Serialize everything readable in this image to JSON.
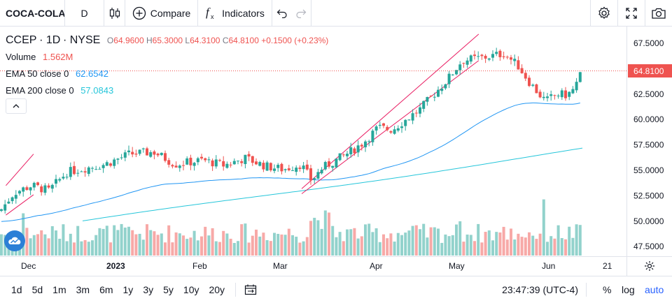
{
  "header": {
    "symbol": "COCA-COLA",
    "interval": "D",
    "compare_label": "Compare",
    "indicators_label": "Indicators",
    "icons": [
      "candles-icon",
      "plus-circle-icon",
      "fx-icon",
      "undo-icon",
      "redo-icon",
      "gear-icon",
      "fullscreen-icon",
      "camera-icon"
    ]
  },
  "legend": {
    "ticker": "CCEP",
    "timeframe": "1D",
    "exchange": "NYSE",
    "o_label": "O",
    "o": "64.9600",
    "h_label": "H",
    "h": "65.3000",
    "l_label": "L",
    "l": "64.3100",
    "c_label": "C",
    "c": "64.8100",
    "change": "+0.1500 (+0.23%)",
    "volume_label": "Volume",
    "volume": "1.562M",
    "ema50_label": "EMA 50 close 0",
    "ema50": "62.6542",
    "ema200_label": "EMA 200 close 0",
    "ema200": "57.0843"
  },
  "price_axis": {
    "ticks": [
      "67.5000",
      "65.0000",
      "62.5000",
      "60.0000",
      "57.5000",
      "55.0000",
      "52.5000",
      "50.0000",
      "47.5000"
    ],
    "last_price": "64.8100"
  },
  "time_axis": {
    "labels": [
      "Dec",
      "2023",
      "Feb",
      "Mar",
      "Apr",
      "May",
      "Jun",
      "21"
    ]
  },
  "bottom": {
    "ranges": [
      "1d",
      "5d",
      "1m",
      "3m",
      "6m",
      "1y",
      "3y",
      "5y",
      "10y",
      "20y"
    ],
    "clock": "23:47:39 (UTC-4)",
    "percent": "%",
    "log": "log",
    "auto": "auto"
  },
  "colors": {
    "up": "#26a69a",
    "down": "#ef5350",
    "ema50": "#2196f3",
    "ema200": "#26c6da",
    "channel": "#e91e63",
    "accent": "#2962ff"
  },
  "chart_data": {
    "type": "candlestick",
    "ylim": [
      46.5,
      69
    ],
    "channel_lines": [
      {
        "from": [
          "2023-03-10",
          53.2
        ],
        "to": [
          "2023-05-13",
          68.4
        ]
      },
      {
        "from": [
          "2023-03-10",
          52.7
        ],
        "to": [
          "2023-05-13",
          65.8
        ]
      },
      {
        "from": [
          "2022-11-23",
          53.5
        ],
        "to": [
          "2022-12-03",
          56.6
        ]
      },
      {
        "from": [
          "2022-11-23",
          50.6
        ],
        "to": [
          "2022-12-03",
          52.6
        ]
      }
    ]
  }
}
